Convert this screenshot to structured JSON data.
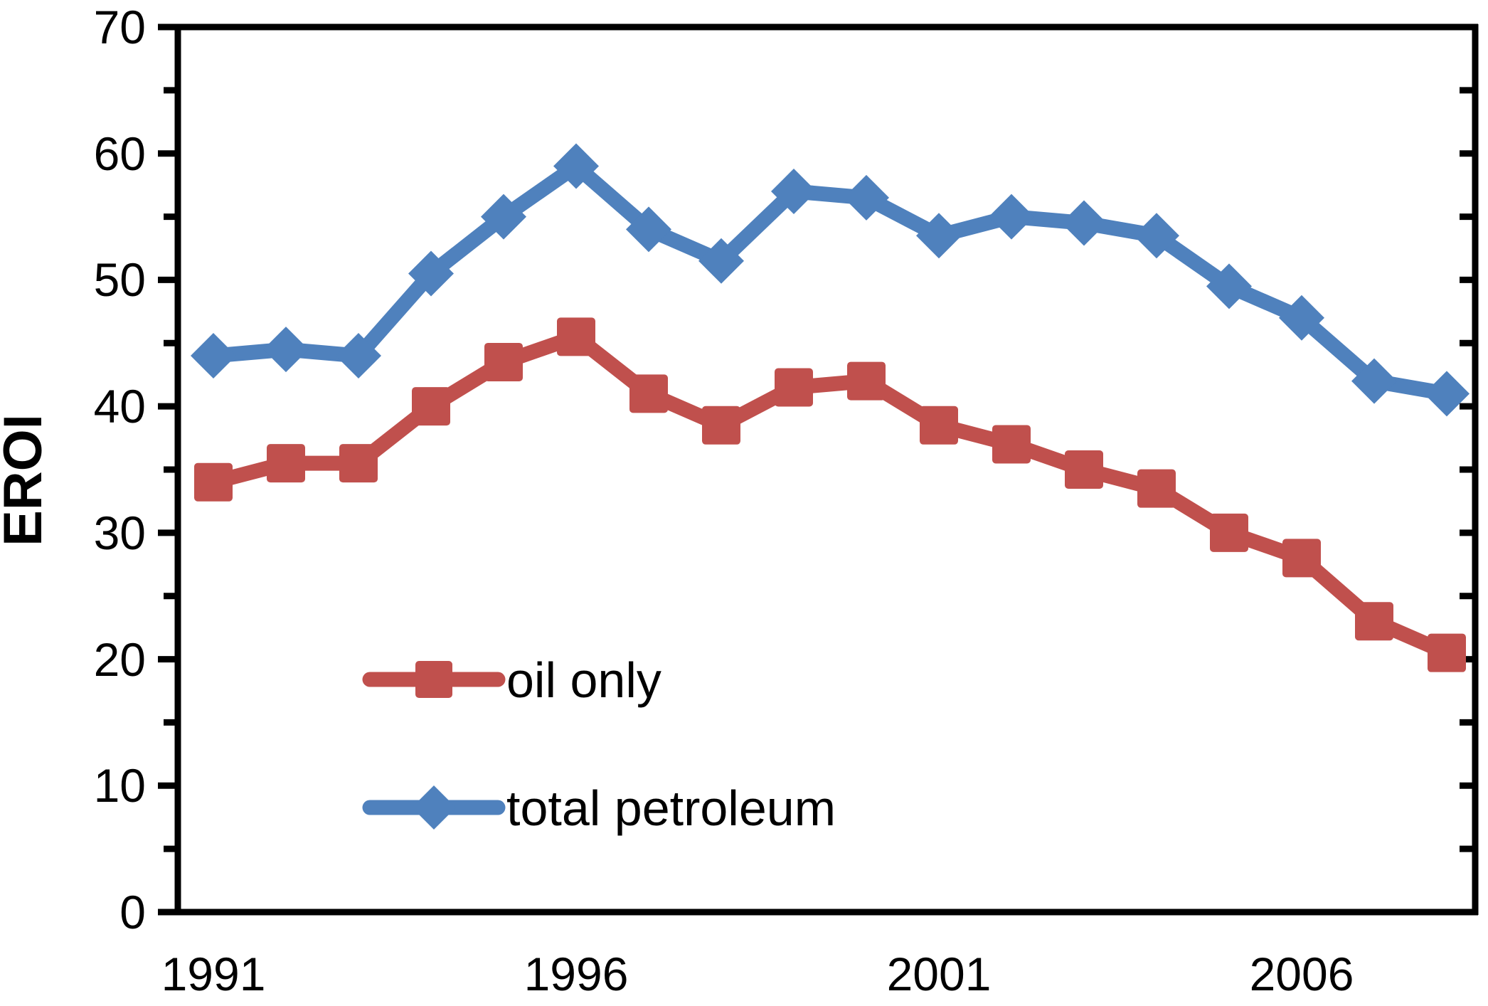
{
  "chart_data": {
    "type": "line",
    "title": "",
    "xlabel": "",
    "ylabel": "EROI",
    "ylim": [
      0,
      70
    ],
    "y_ticks": [
      0,
      10,
      20,
      30,
      40,
      50,
      60,
      70
    ],
    "y_tick_labels": [
      "0",
      "10",
      "20",
      "30",
      "40",
      "50",
      "60",
      "70"
    ],
    "y_minor_tick_step": 5,
    "grid": false,
    "background_color": "#FFFFFF",
    "axis_color": "#000000",
    "x": [
      1991,
      1992,
      1993,
      1994,
      1995,
      1996,
      1997,
      1998,
      1999,
      2000,
      2001,
      2002,
      2003,
      2004,
      2005,
      2006,
      2007,
      2008
    ],
    "x_tick_labels": [
      "1991",
      "1996",
      "2001",
      "2006"
    ],
    "x_tick_years": [
      1991,
      1996,
      2001,
      2006
    ],
    "series": [
      {
        "name": "oil only",
        "color": "#C0504D",
        "marker": "square",
        "values": [
          34,
          35.5,
          35.5,
          40,
          43.5,
          45.5,
          41,
          38.5,
          41.5,
          42,
          38.5,
          37,
          35,
          33.5,
          30,
          28,
          23,
          20.5
        ]
      },
      {
        "name": "total petroleum",
        "color": "#4F81BD",
        "marker": "diamond",
        "values": [
          44,
          44.5,
          44,
          50.5,
          55,
          59,
          54,
          51.5,
          57,
          56.5,
          53.5,
          55,
          54.5,
          53.5,
          49.5,
          47,
          42,
          41
        ]
      }
    ],
    "legend": {
      "position": "inside-lower-left",
      "items": [
        {
          "label": "oil only"
        },
        {
          "label": "total petroleum"
        }
      ]
    }
  }
}
